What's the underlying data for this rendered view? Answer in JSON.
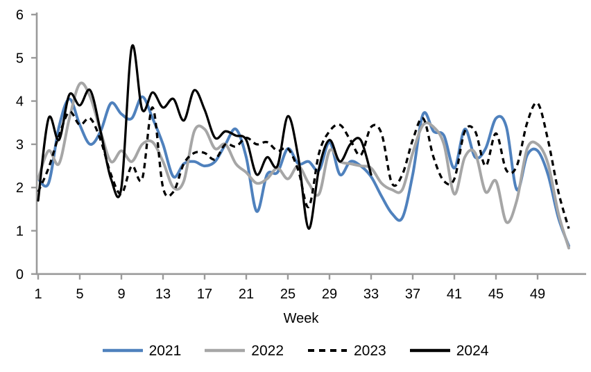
{
  "page": {
    "background": "#ffffff"
  },
  "chart_data": {
    "type": "line",
    "title": "",
    "xlabel": "Week",
    "ylabel": "",
    "xlim": [
      1,
      52
    ],
    "ylim": [
      0,
      6
    ],
    "x_ticks": [
      1,
      5,
      9,
      13,
      17,
      21,
      25,
      29,
      33,
      37,
      41,
      45,
      49
    ],
    "y_ticks": [
      0,
      1,
      2,
      3,
      4,
      5,
      6
    ],
    "grid": "off",
    "legend_position": "bottom",
    "axis_color": "#9a9a9a",
    "text_color": "#000000",
    "line_smoothing": true,
    "x": [
      1,
      2,
      3,
      4,
      5,
      6,
      7,
      8,
      9,
      10,
      11,
      12,
      13,
      14,
      15,
      16,
      17,
      18,
      19,
      20,
      21,
      22,
      23,
      24,
      25,
      26,
      27,
      28,
      29,
      30,
      31,
      32,
      33,
      34,
      35,
      36,
      37,
      38,
      39,
      40,
      41,
      42,
      43,
      44,
      45,
      46,
      47,
      48,
      49,
      50,
      51,
      52
    ],
    "series": [
      {
        "name": "2021",
        "color": "#4f81bd",
        "style": "solid",
        "stroke_width": 4,
        "values": [
          2.2,
          2.1,
          3.4,
          4.05,
          3.45,
          3.0,
          3.3,
          3.95,
          3.7,
          3.6,
          4.1,
          3.6,
          3.0,
          2.25,
          2.55,
          2.6,
          2.5,
          2.6,
          3.0,
          3.35,
          2.7,
          1.45,
          2.3,
          2.35,
          2.9,
          2.55,
          2.6,
          2.4,
          3.05,
          2.3,
          2.6,
          2.5,
          2.25,
          1.8,
          1.4,
          1.3,
          2.3,
          3.7,
          3.3,
          3.2,
          2.45,
          3.35,
          2.7,
          2.9,
          3.6,
          3.4,
          1.95,
          2.75,
          2.85,
          2.3,
          1.3,
          0.65
        ]
      },
      {
        "name": "2022",
        "color": "#a6a6a6",
        "style": "solid",
        "stroke_width": 4,
        "values": [
          2.2,
          2.85,
          2.55,
          3.6,
          4.4,
          4.1,
          3.3,
          2.6,
          2.85,
          2.6,
          3.0,
          3.05,
          2.6,
          2.0,
          2.15,
          3.3,
          3.35,
          2.9,
          3.0,
          2.55,
          2.35,
          2.1,
          2.2,
          2.45,
          2.2,
          2.5,
          2.1,
          1.85,
          2.85,
          2.6,
          2.55,
          2.5,
          2.45,
          2.1,
          1.95,
          1.95,
          2.8,
          3.45,
          3.4,
          3.0,
          1.85,
          2.7,
          2.8,
          1.9,
          2.15,
          1.2,
          1.7,
          2.9,
          3.0,
          2.55,
          1.4,
          0.6
        ]
      },
      {
        "name": "2023",
        "color": "#000000",
        "style": "dashed",
        "stroke_width": 3.3,
        "values": [
          1.9,
          2.45,
          3.2,
          3.75,
          3.45,
          3.6,
          3.1,
          2.3,
          1.85,
          2.5,
          2.2,
          3.85,
          2.0,
          1.9,
          2.55,
          2.8,
          2.8,
          2.65,
          3.0,
          2.95,
          3.15,
          3.0,
          3.05,
          2.85,
          2.9,
          2.4,
          1.55,
          2.8,
          3.3,
          3.45,
          3.1,
          2.75,
          3.4,
          3.25,
          2.1,
          2.3,
          3.1,
          3.6,
          2.7,
          2.15,
          2.2,
          3.3,
          3.3,
          2.5,
          3.25,
          2.4,
          2.5,
          3.5,
          3.95,
          3.1,
          1.9,
          1.05
        ]
      },
      {
        "name": "2024",
        "color": "#000000",
        "style": "solid",
        "stroke_width": 3.3,
        "values": [
          1.7,
          3.6,
          3.1,
          4.15,
          3.9,
          4.25,
          3.3,
          2.2,
          2.0,
          5.25,
          3.8,
          4.2,
          3.85,
          4.05,
          3.55,
          4.25,
          3.8,
          3.15,
          3.3,
          3.2,
          3.1,
          2.3,
          2.7,
          2.5,
          3.65,
          2.7,
          1.05,
          2.45,
          3.1,
          2.6,
          3.0,
          3.1,
          2.3
        ]
      }
    ],
    "legend": [
      "2021",
      "2022",
      "2023",
      "2024"
    ]
  }
}
